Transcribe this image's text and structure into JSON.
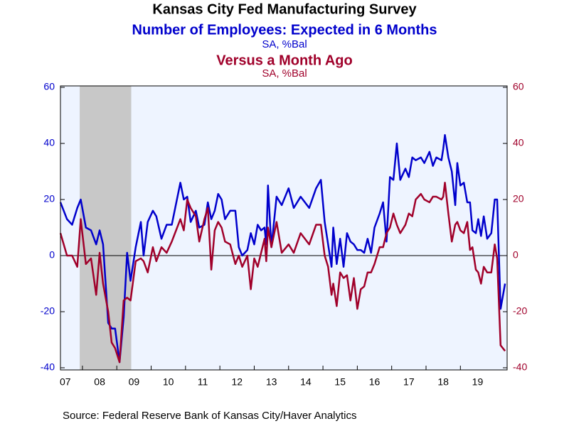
{
  "chart_data": {
    "type": "line",
    "title": "Kansas City Fed Manufacturing Survey",
    "source": "Source:  Federal Reserve Bank of Kansas City/Haver Analytics",
    "xlim": [
      2007.36,
      2020.36
    ],
    "xticks": [
      {
        "value": 2007,
        "label": "07"
      },
      {
        "value": 2008,
        "label": "08"
      },
      {
        "value": 2009,
        "label": "09"
      },
      {
        "value": 2010,
        "label": "10"
      },
      {
        "value": 2011,
        "label": "11"
      },
      {
        "value": 2012,
        "label": "12"
      },
      {
        "value": 2013,
        "label": "13"
      },
      {
        "value": 2014,
        "label": "14"
      },
      {
        "value": 2015,
        "label": "15"
      },
      {
        "value": 2016,
        "label": "16"
      },
      {
        "value": 2017,
        "label": "17"
      },
      {
        "value": 2018,
        "label": "18"
      },
      {
        "value": 2019,
        "label": "19"
      }
    ],
    "ylim": [
      -40,
      60
    ],
    "yticks": [
      -40,
      -20,
      0,
      20,
      40,
      60
    ],
    "y2lim": [
      -40,
      60
    ],
    "y2ticks": [
      -40,
      -20,
      0,
      20,
      40,
      60
    ],
    "recession": [
      2007.92,
      2009.42
    ],
    "x": [
      2007.36,
      2007.55,
      2007.7,
      2007.85,
      2007.95,
      2008.1,
      2008.25,
      2008.4,
      2008.5,
      2008.6,
      2008.75,
      2008.85,
      2008.95,
      2009.08,
      2009.2,
      2009.3,
      2009.4,
      2009.55,
      2009.7,
      2009.78,
      2009.9,
      2010.05,
      2010.15,
      2010.3,
      2010.45,
      2010.6,
      2010.85,
      2010.95,
      2011.05,
      2011.15,
      2011.3,
      2011.4,
      2011.55,
      2011.65,
      2011.75,
      2011.85,
      2011.95,
      2012.05,
      2012.15,
      2012.3,
      2012.45,
      2012.55,
      2012.65,
      2012.8,
      2012.9,
      2013.0,
      2013.1,
      2013.2,
      2013.3,
      2013.35,
      2013.4,
      2013.5,
      2013.65,
      2013.8,
      2014.0,
      2014.15,
      2014.35,
      2014.6,
      2014.8,
      2014.94,
      2015.05,
      2015.15,
      2015.25,
      2015.3,
      2015.4,
      2015.5,
      2015.6,
      2015.7,
      2015.8,
      2015.9,
      2016.0,
      2016.1,
      2016.2,
      2016.3,
      2016.4,
      2016.5,
      2016.65,
      2016.75,
      2016.85,
      2016.95,
      2017.05,
      2017.15,
      2017.25,
      2017.4,
      2017.5,
      2017.6,
      2017.7,
      2017.85,
      2017.95,
      2018.1,
      2018.2,
      2018.3,
      2018.45,
      2018.5,
      2018.55,
      2018.65,
      2018.75,
      2018.85,
      2018.91,
      2019.0,
      2019.1,
      2019.2,
      2019.28,
      2019.35,
      2019.45,
      2019.52,
      2019.6,
      2019.68,
      2019.78,
      2019.9,
      2020.0,
      2020.07,
      2020.17,
      2020.3
    ],
    "series": [
      {
        "name": "Number of Employees: Expected in 6 Months",
        "units": "SA, %Bal",
        "color": "#0000cc",
        "axis": "y",
        "values": [
          19,
          13,
          11,
          17,
          20,
          10,
          9,
          4,
          9,
          4,
          -24,
          -26,
          -26,
          -38,
          -22,
          1,
          -9,
          3,
          12,
          0,
          12,
          16,
          14,
          6,
          11,
          11,
          26,
          20,
          21,
          12,
          16,
          10,
          11,
          19,
          13,
          16,
          22,
          20,
          13,
          16,
          16,
          3,
          0,
          2,
          8,
          4,
          11,
          9,
          10,
          4,
          25,
          3,
          21,
          18,
          24,
          17,
          21,
          17,
          24,
          27,
          12,
          4,
          -4,
          10,
          -3,
          6,
          -4,
          8,
          5,
          4,
          2,
          2,
          1,
          6,
          1,
          10,
          15,
          19,
          5,
          28,
          27,
          40,
          27,
          31,
          28,
          35,
          34,
          35,
          33,
          37,
          32,
          35,
          34,
          38,
          43,
          35,
          30,
          18,
          33,
          25,
          26,
          19,
          19,
          9,
          8,
          13,
          7,
          14,
          6,
          8,
          20,
          20,
          -19,
          -10
        ]
      },
      {
        "name": "Versus a Month Ago",
        "units": "SA, %Bal",
        "color": "#a0002a",
        "axis": "y2",
        "values": [
          8,
          0,
          0,
          -4,
          13,
          -3,
          -1,
          -14,
          1,
          -10,
          -20,
          -31,
          -33,
          -38,
          -16,
          -15,
          -16,
          -2,
          -1,
          -2,
          -6,
          3,
          -2,
          3,
          1,
          5,
          13,
          9,
          20,
          17,
          14,
          5,
          13,
          17,
          -5,
          9,
          12,
          10,
          5,
          4,
          -3,
          0,
          -4,
          0,
          -12,
          -1,
          -4,
          1,
          6,
          -2,
          10,
          3,
          12,
          1,
          4,
          1,
          8,
          4,
          11,
          11,
          0,
          -4,
          -14,
          -10,
          -18,
          -6,
          -8,
          -7,
          -16,
          -8,
          -19,
          -12,
          -11,
          -6,
          -6,
          -3,
          3,
          3,
          8,
          10,
          15,
          11,
          8,
          11,
          15,
          14,
          20,
          22,
          20,
          19,
          21,
          21,
          20,
          21,
          26,
          15,
          5,
          11,
          12,
          9,
          8,
          12,
          2,
          3,
          -5,
          -6,
          -10,
          -4,
          -6,
          -6,
          4,
          -1,
          -32,
          -34
        ]
      }
    ]
  }
}
